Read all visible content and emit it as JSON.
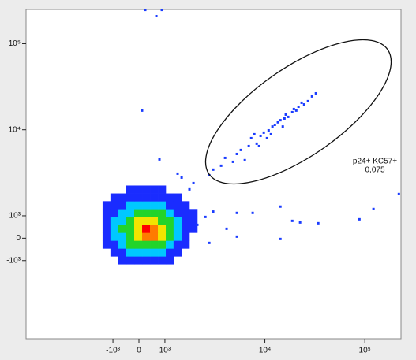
{
  "chart_data": {
    "type": "density",
    "xscale": "biexponential",
    "yscale": "biexponential",
    "xlim": [
      -7400,
      230000
    ],
    "ylim": [
      -8100,
      250000
    ],
    "xticks": [
      {
        "value": -1000,
        "label": "-10³"
      },
      0,
      {
        "value": 1000,
        "label": "10³"
      },
      {
        "value": 10000,
        "label": "10⁴"
      },
      {
        "value": 100000,
        "label": "10⁵"
      }
    ],
    "yticks": [
      {
        "value": -1000,
        "label": "-10³"
      },
      0,
      {
        "value": 1000,
        "label": "10³"
      },
      {
        "value": 10000,
        "label": "10⁴"
      },
      {
        "value": 100000,
        "label": "10⁵"
      }
    ],
    "density": {
      "colors": [
        "#1a2cff",
        "#00c8ff",
        "#22d42a",
        "#f2e400",
        "#ff7a00",
        "#ff0000"
      ],
      "xbins": [
        -1270,
        -1060,
        -790,
        -486,
        -182,
        122,
        426,
        730,
        1020,
        1220,
        1470,
        1760,
        2110
      ],
      "ybins": [
        -1100,
        -809,
        -458,
        -106,
        246,
        598,
        950,
        1200,
        1480,
        1820,
        2250
      ],
      "counts": [
        [
          0,
          0,
          1,
          1,
          1,
          1,
          1,
          1,
          1,
          0,
          0,
          0
        ],
        [
          0,
          1,
          1,
          2,
          2,
          2,
          2,
          2,
          1,
          1,
          0,
          0
        ],
        [
          1,
          1,
          2,
          3,
          3,
          3,
          3,
          3,
          2,
          1,
          1,
          0
        ],
        [
          1,
          2,
          2,
          3,
          4,
          5,
          5,
          4,
          3,
          2,
          1,
          0
        ],
        [
          1,
          2,
          3,
          3,
          4,
          6,
          5,
          4,
          3,
          2,
          1,
          1
        ],
        [
          1,
          2,
          2,
          3,
          4,
          4,
          4,
          3,
          3,
          2,
          1,
          1
        ],
        [
          1,
          1,
          2,
          2,
          3,
          3,
          3,
          3,
          2,
          1,
          1,
          1
        ],
        [
          1,
          1,
          1,
          2,
          2,
          2,
          2,
          2,
          1,
          1,
          1,
          0
        ],
        [
          0,
          1,
          1,
          1,
          1,
          1,
          1,
          1,
          1,
          1,
          0,
          0
        ],
        [
          0,
          0,
          0,
          1,
          1,
          1,
          1,
          1,
          0,
          0,
          0,
          0
        ]
      ]
    },
    "points": {
      "color": "#1a3cff",
      "x": [
        2780,
        3040,
        3650,
        4000,
        4800,
        5250,
        5750,
        6300,
        6900,
        7300,
        7840,
        8280,
        9060,
        9750,
        10500,
        10900,
        11900,
        12600,
        13500,
        14300,
        15100,
        15700,
        16200,
        17100,
        18800,
        19500,
        20600,
        21700,
        23300,
        24700,
        27000,
        29600,
        32400,
        8750,
        11500,
        120,
        790,
        1340,
        1470,
        1760,
        1930,
        243,
        882,
        670,
        2540,
        3040,
        5250,
        7550,
        14300,
        18800,
        22500,
        34200,
        88300,
        122000,
        219000,
        14300,
        5250,
        4140,
        2110,
        2780
      ],
      "y": [
        2960,
        3440,
        3820,
        4710,
        4240,
        5230,
        5820,
        4430,
        6460,
        7980,
        8870,
        6890,
        8490,
        9250,
        7980,
        9840,
        10900,
        11400,
        12200,
        12900,
        10900,
        13500,
        15000,
        14100,
        16000,
        17400,
        16700,
        18500,
        20600,
        19700,
        21500,
        24400,
        26500,
        6460,
        8870,
        16700,
        4520,
        3090,
        2780,
        2030,
        2400,
        247000,
        247000,
        209000,
        950,
        1120,
        1080,
        1080,
        1280,
        775,
        704,
        669,
        845,
        1200,
        1790,
        -35,
        70,
        422,
        598,
        -211
      ]
    },
    "gate_label": "p24+ KC57+",
    "gate_value": "0,075"
  }
}
